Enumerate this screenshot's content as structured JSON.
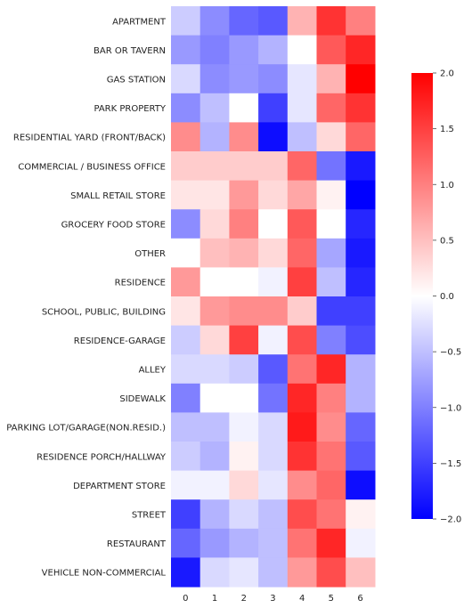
{
  "chart_data": {
    "type": "heatmap",
    "title": "",
    "xlabel": "",
    "ylabel": "",
    "categories_y": [
      "APARTMENT",
      "BAR OR TAVERN",
      "GAS STATION",
      "PARK PROPERTY",
      "RESIDENTIAL YARD (FRONT/BACK)",
      "COMMERCIAL / BUSINESS OFFICE",
      "SMALL RETAIL STORE",
      "GROCERY FOOD STORE",
      "OTHER",
      "RESIDENCE",
      "SCHOOL, PUBLIC, BUILDING",
      "RESIDENCE-GARAGE",
      "ALLEY",
      "SIDEWALK",
      "PARKING LOT/GARAGE(NON.RESID.)",
      "RESIDENCE PORCH/HALLWAY",
      "DEPARTMENT STORE",
      "STREET",
      "RESTAURANT",
      "VEHICLE NON-COMMERCIAL"
    ],
    "categories_x": [
      "0",
      "1",
      "2",
      "3",
      "4",
      "5",
      "6"
    ],
    "values": [
      [
        -0.4,
        -0.9,
        -1.2,
        -1.3,
        0.6,
        1.6,
        1.0
      ],
      [
        -0.8,
        -1.0,
        -0.8,
        -0.6,
        0.0,
        1.3,
        1.7
      ],
      [
        -0.3,
        -0.9,
        -0.8,
        -0.9,
        -0.2,
        0.6,
        2.0
      ],
      [
        -0.9,
        -0.5,
        0.0,
        -1.5,
        -0.2,
        1.2,
        1.6
      ],
      [
        0.9,
        -0.6,
        0.9,
        -1.9,
        -0.5,
        0.3,
        1.2
      ],
      [
        0.4,
        0.4,
        0.4,
        0.4,
        1.2,
        -1.1,
        -1.8
      ],
      [
        0.2,
        0.2,
        0.8,
        0.3,
        0.7,
        0.1,
        -2.0
      ],
      [
        -0.9,
        0.3,
        1.0,
        0.0,
        1.3,
        0.0,
        -1.7
      ],
      [
        0.0,
        0.5,
        0.6,
        0.3,
        1.2,
        -0.7,
        -1.8
      ],
      [
        0.8,
        0.0,
        0.0,
        -0.1,
        1.5,
        -0.5,
        -1.7
      ],
      [
        0.2,
        0.8,
        0.9,
        0.9,
        0.4,
        -1.5,
        -1.5
      ],
      [
        -0.4,
        0.3,
        1.5,
        -0.1,
        1.4,
        -1.0,
        -1.4
      ],
      [
        -0.3,
        -0.3,
        -0.4,
        -1.3,
        1.1,
        1.7,
        -0.6
      ],
      [
        -1.0,
        0.0,
        0.0,
        -1.1,
        1.7,
        1.0,
        -0.6
      ],
      [
        -0.5,
        -0.5,
        -0.1,
        -0.3,
        1.8,
        0.9,
        -1.2
      ],
      [
        -0.4,
        -0.6,
        0.1,
        -0.3,
        1.6,
        1.1,
        -1.3
      ],
      [
        -0.1,
        -0.1,
        0.3,
        -0.2,
        0.9,
        1.2,
        -1.9
      ],
      [
        -1.5,
        -0.6,
        -0.3,
        -0.5,
        1.4,
        1.1,
        0.1
      ],
      [
        -1.2,
        -0.8,
        -0.6,
        -0.5,
        1.1,
        1.7,
        -0.1
      ],
      [
        -1.8,
        -0.3,
        -0.2,
        -0.5,
        0.8,
        1.4,
        0.5
      ]
    ],
    "colorscale": "bwr",
    "vmin": -2.0,
    "vmax": 2.0,
    "colorbar_ticks": [
      "2.0",
      "1.5",
      "1.0",
      "0.5",
      "0.0",
      "−0.5",
      "−1.0",
      "−1.5",
      "−2.0"
    ],
    "colorbar_tick_values": [
      2.0,
      1.5,
      1.0,
      0.5,
      0.0,
      -0.5,
      -1.0,
      -1.5,
      -2.0
    ],
    "grid": false
  }
}
